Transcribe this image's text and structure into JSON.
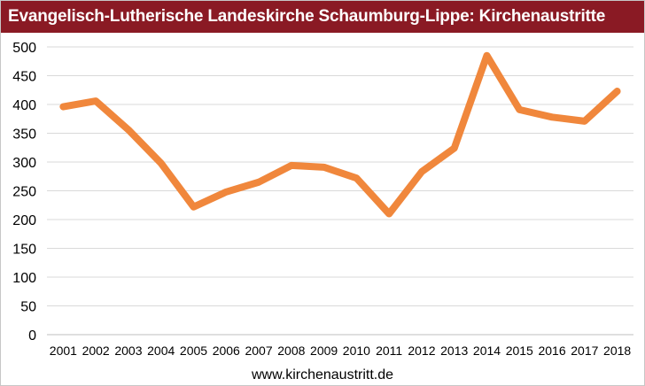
{
  "header": {
    "title": "Evangelisch-Lutherische Landeskirche Schaumburg-Lippe: Kirchenaustritte"
  },
  "footer": {
    "source": "www.kirchenaustritt.de"
  },
  "colors": {
    "title_bg": "#8a1a24",
    "line": "#f0873c",
    "grid": "#d9d9d9"
  },
  "chart_data": {
    "type": "line",
    "title": "Evangelisch-Lutherische Landeskirche Schaumburg-Lippe: Kirchenaustritte",
    "xlabel": "",
    "ylabel": "",
    "x": [
      "2001",
      "2002",
      "2003",
      "2004",
      "2005",
      "2006",
      "2007",
      "2008",
      "2009",
      "2010",
      "2011",
      "2012",
      "2013",
      "2014",
      "2015",
      "2016",
      "2017",
      "2018"
    ],
    "series": [
      {
        "values": [
          396,
          406,
          356,
          298,
          222,
          248,
          265,
          294,
          291,
          272,
          210,
          283,
          324,
          485,
          391,
          378,
          371,
          423
        ]
      }
    ],
    "ylim": [
      0,
      500
    ],
    "yticks": [
      "0",
      "50",
      "100",
      "150",
      "200",
      "250",
      "300",
      "350",
      "400",
      "450",
      "500"
    ],
    "grid": true,
    "legend": "none"
  }
}
